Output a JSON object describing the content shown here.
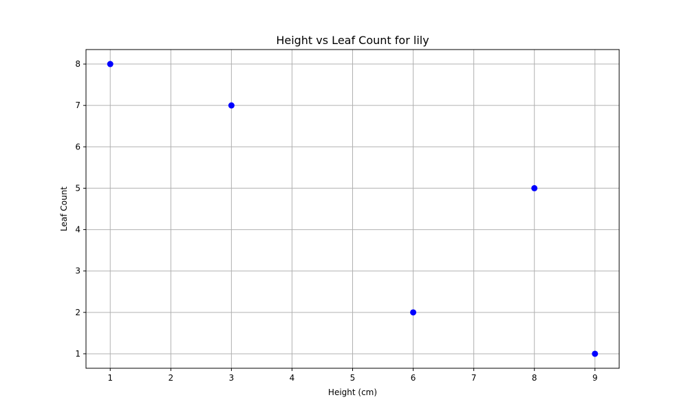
{
  "chart_data": {
    "type": "scatter",
    "title": "Height vs Leaf Count for lily",
    "xlabel": "Height (cm)",
    "ylabel": "Leaf Count",
    "xlim": [
      0.6,
      9.4
    ],
    "ylim": [
      0.65,
      8.35
    ],
    "xticks": [
      1,
      2,
      3,
      4,
      5,
      6,
      7,
      8,
      9
    ],
    "yticks": [
      1,
      2,
      3,
      4,
      5,
      6,
      7,
      8
    ],
    "grid": true,
    "series": [
      {
        "color": "#0000ff",
        "points": [
          {
            "x": 1,
            "y": 8
          },
          {
            "x": 3,
            "y": 7
          },
          {
            "x": 6,
            "y": 2
          },
          {
            "x": 8,
            "y": 5
          },
          {
            "x": 9,
            "y": 1
          }
        ]
      }
    ],
    "colors": {
      "grid": "#b0b0b0",
      "axis": "#000000",
      "background": "#ffffff"
    }
  }
}
